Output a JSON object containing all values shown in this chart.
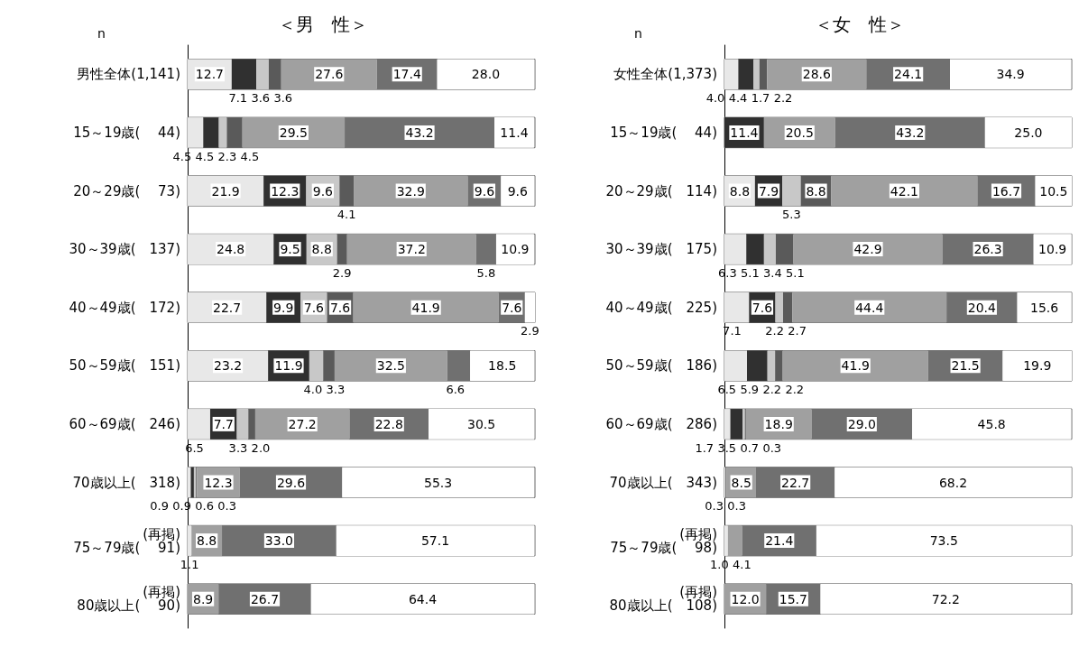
{
  "chart_data": [
    {
      "type": "bar",
      "title": "＜男　性＞",
      "ylabel": "n",
      "orientation": "horizontal",
      "stacked": true,
      "categories": [
        "男性全体(1,141)",
        "15～19歳(　 44)",
        "20～29歳(　 73)",
        "30～39歳(　137)",
        "40～49歳(　172)",
        "50～59歳(　151)",
        "60～69歳(　246)",
        "70歳以上(　318)",
        "(再掲)\n75～79歳(　 91)",
        "(再掲)\n80歳以上(　 90)"
      ],
      "series": [
        {
          "color": "#e8e8e8",
          "values": [
            12.7,
            4.5,
            21.9,
            24.8,
            22.7,
            23.2,
            6.5,
            0.9,
            1.1,
            null
          ],
          "value_labels": [
            "12.7",
            "4.5",
            "21.9",
            "24.8",
            "22.7",
            "23.2",
            "6.5",
            "0.9",
            "1.1",
            null
          ]
        },
        {
          "color": "#303030",
          "values": [
            7.1,
            4.5,
            12.3,
            9.5,
            9.9,
            11.9,
            7.7,
            0.9,
            null,
            null
          ],
          "value_labels": [
            "7.1",
            "4.5",
            "12.3",
            "9.5",
            "9.9",
            "11.9",
            "7.7",
            "0.9",
            null,
            null
          ]
        },
        {
          "color": "#c8c8c8",
          "values": [
            3.6,
            2.3,
            9.6,
            8.8,
            7.6,
            4.0,
            3.3,
            0.6,
            null,
            null
          ],
          "value_labels": [
            "3.6",
            "2.3",
            "9.6",
            "8.8",
            "7.6",
            "4.0",
            "3.3",
            "0.6",
            null,
            null
          ]
        },
        {
          "color": "#5a5a5a",
          "values": [
            3.6,
            4.5,
            4.1,
            2.9,
            7.6,
            3.3,
            2.0,
            0.3,
            null,
            null
          ],
          "value_labels": [
            "3.6",
            "4.5",
            "4.1",
            "2.9",
            "7.6",
            "3.3",
            "2.0",
            "0.3",
            null,
            null
          ]
        },
        {
          "color": "#a0a0a0",
          "values": [
            27.6,
            29.5,
            32.9,
            37.2,
            41.9,
            32.5,
            27.2,
            12.3,
            8.8,
            8.9
          ],
          "value_labels": [
            "27.6",
            "29.5",
            "32.9",
            "37.2",
            "41.9",
            "32.5",
            "27.2",
            "12.3",
            "8.8",
            "8.9"
          ]
        },
        {
          "color": "#707070",
          "values": [
            17.4,
            43.2,
            9.6,
            5.8,
            7.6,
            6.6,
            22.8,
            29.6,
            33.0,
            26.7
          ],
          "value_labels": [
            "17.4",
            "43.2",
            "9.6",
            "5.8",
            "7.6",
            "6.6",
            "22.8",
            "29.6",
            "33.0",
            "26.7"
          ]
        },
        {
          "color": "#ffffff",
          "values": [
            28.0,
            11.4,
            9.6,
            10.9,
            2.9,
            18.5,
            30.5,
            55.3,
            57.1,
            64.4
          ],
          "value_labels": [
            "28.0",
            "11.4",
            "9.6",
            "10.9",
            "2.9",
            "18.5",
            "30.5",
            "55.3",
            "57.1",
            "64.4"
          ]
        }
      ]
    },
    {
      "type": "bar",
      "title": "＜女　性＞",
      "ylabel": "n",
      "orientation": "horizontal",
      "stacked": true,
      "categories": [
        "女性全体(1,373)",
        "15～19歳(　 44)",
        "20～29歳(　114)",
        "30～39歳(　175)",
        "40～49歳(　225)",
        "50～59歳(　186)",
        "60～69歳(　286)",
        "70歳以上(　343)",
        "(再掲)\n75～79歳(　 98)",
        "(再掲)\n80歳以上(　108)"
      ],
      "series": [
        {
          "color": "#e8e8e8",
          "values": [
            4.0,
            null,
            8.8,
            6.3,
            7.1,
            6.5,
            1.7,
            0.3,
            1.0,
            null
          ],
          "value_labels": [
            "4.0",
            null,
            "8.8",
            "6.3",
            "7.1",
            "6.5",
            "1.7",
            "0.3",
            "1.0",
            null
          ]
        },
        {
          "color": "#303030",
          "values": [
            4.4,
            11.4,
            7.9,
            5.1,
            7.6,
            5.9,
            3.5,
            null,
            null,
            null
          ],
          "value_labels": [
            "4.4",
            "11.4",
            "7.9",
            "5.1",
            "7.6",
            "5.9",
            "3.5",
            null,
            null,
            null
          ]
        },
        {
          "color": "#c8c8c8",
          "values": [
            1.7,
            null,
            5.3,
            3.4,
            2.2,
            2.2,
            0.7,
            null,
            null,
            null
          ],
          "value_labels": [
            "1.7",
            null,
            "5.3",
            "3.4",
            "2.2",
            "2.2",
            "0.7",
            null,
            null,
            null
          ]
        },
        {
          "color": "#5a5a5a",
          "values": [
            2.2,
            null,
            8.8,
            5.1,
            2.7,
            2.2,
            0.3,
            0.3,
            null,
            null
          ],
          "value_labels": [
            "2.2",
            null,
            "8.8",
            "5.1",
            "2.7",
            "2.2",
            "0.3",
            "0.3",
            null,
            null
          ]
        },
        {
          "color": "#a0a0a0",
          "values": [
            28.6,
            20.5,
            42.1,
            42.9,
            44.4,
            41.9,
            18.9,
            8.5,
            4.1,
            12.0
          ],
          "value_labels": [
            "28.6",
            "20.5",
            "42.1",
            "42.9",
            "44.4",
            "41.9",
            "18.9",
            "8.5",
            "4.1",
            "12.0"
          ]
        },
        {
          "color": "#707070",
          "values": [
            24.1,
            43.2,
            16.7,
            26.3,
            20.4,
            21.5,
            29.0,
            22.7,
            21.4,
            15.7
          ],
          "value_labels": [
            "24.1",
            "43.2",
            "16.7",
            "26.3",
            "20.4",
            "21.5",
            "29.0",
            "22.7",
            "21.4",
            "15.7"
          ]
        },
        {
          "color": "#ffffff",
          "values": [
            34.9,
            25.0,
            10.5,
            10.9,
            15.6,
            19.9,
            45.8,
            68.2,
            73.5,
            72.2
          ],
          "value_labels": [
            "34.9",
            "25.0",
            "10.5",
            "10.9",
            "15.6",
            "19.9",
            "45.8",
            "68.2",
            "73.5",
            "72.2"
          ]
        }
      ]
    }
  ]
}
